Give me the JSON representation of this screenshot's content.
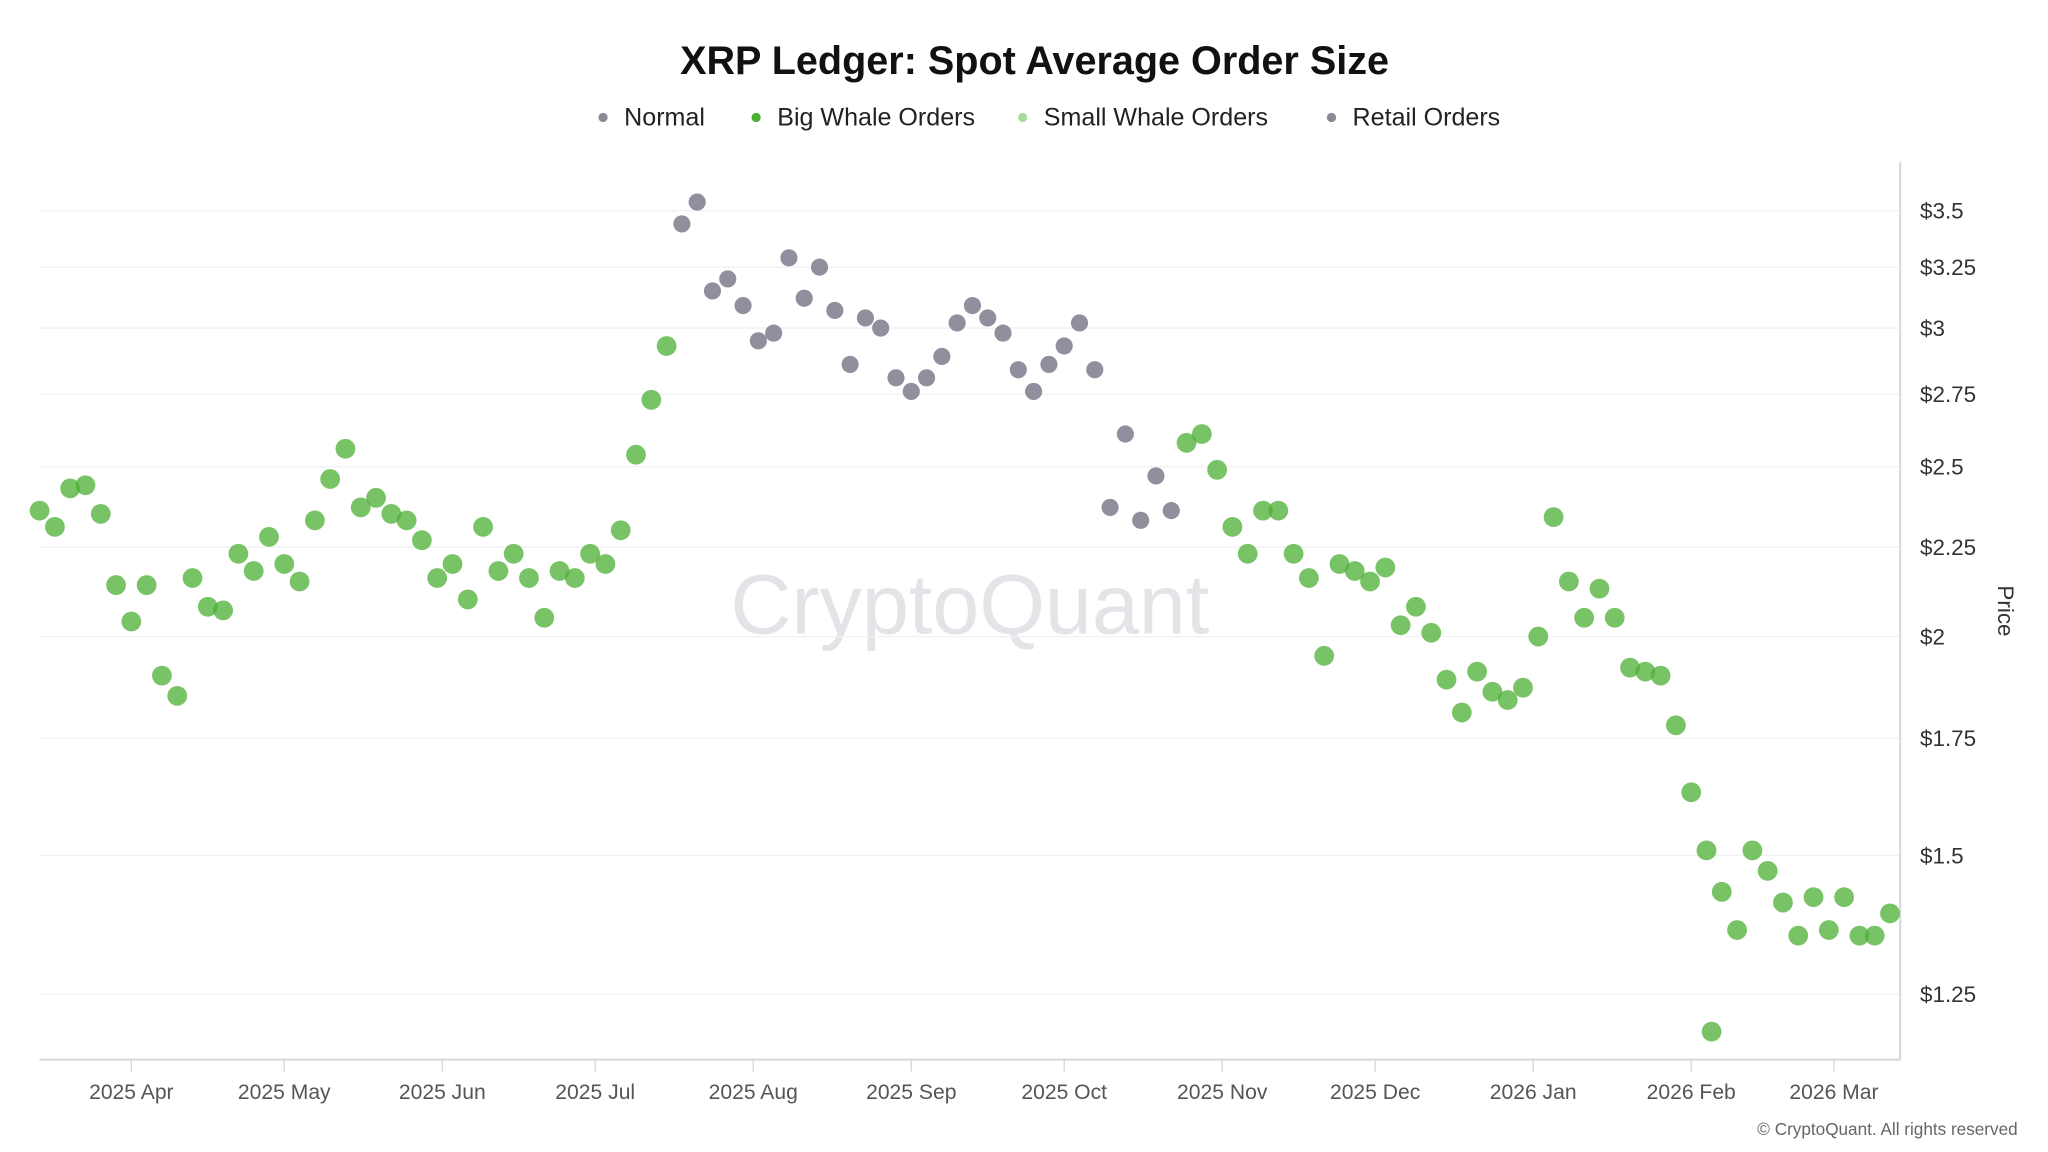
{
  "chart_data": {
    "type": "scatter",
    "title": "XRP Ledger: Spot Average Order Size",
    "ylabel": "Price",
    "xlabel": "",
    "y_scale": "log",
    "ylim": [
      1.147,
      3.73
    ],
    "xlim": [
      "2025-03-14",
      "2026-03-14"
    ],
    "grid": "horizontal",
    "legend_position": "top-center",
    "y_axis_side": "right",
    "legend": [
      {
        "key": "normal",
        "label": "Normal",
        "color": "#8b8898"
      },
      {
        "key": "big",
        "label": "Big Whale Orders",
        "color": "#4caf34"
      },
      {
        "key": "small",
        "label": "Small Whale Orders",
        "color": "#a8dc98"
      },
      {
        "key": "retail",
        "label": "Retail Orders",
        "color": "#8b8898"
      }
    ],
    "y_ticks": [
      {
        "value": 3.5,
        "label": "$3.5"
      },
      {
        "value": 3.25,
        "label": "$3.25"
      },
      {
        "value": 3.0,
        "label": "$3"
      },
      {
        "value": 2.75,
        "label": "$2.75"
      },
      {
        "value": 2.5,
        "label": "$2.5"
      },
      {
        "value": 2.25,
        "label": "$2.25"
      },
      {
        "value": 2.0,
        "label": "$2"
      },
      {
        "value": 1.75,
        "label": "$1.75"
      },
      {
        "value": 1.5,
        "label": "$1.5"
      },
      {
        "value": 1.25,
        "label": "$1.25"
      }
    ],
    "x_ticks": [
      {
        "date": "2025-04-01",
        "label": "2025 Apr"
      },
      {
        "date": "2025-05-01",
        "label": "2025 May"
      },
      {
        "date": "2025-06-01",
        "label": "2025 Jun"
      },
      {
        "date": "2025-07-01",
        "label": "2025 Jul"
      },
      {
        "date": "2025-08-01",
        "label": "2025 Aug"
      },
      {
        "date": "2025-09-01",
        "label": "2025 Sep"
      },
      {
        "date": "2025-10-01",
        "label": "2025 Oct"
      },
      {
        "date": "2025-11-01",
        "label": "2025 Nov"
      },
      {
        "date": "2025-12-01",
        "label": "2025 Dec"
      },
      {
        "date": "2026-01-01",
        "label": "2026 Jan"
      },
      {
        "date": "2026-02-01",
        "label": "2026 Feb"
      },
      {
        "date": "2026-03-01",
        "label": "2026 Mar"
      }
    ],
    "points": [
      [
        "2025-03-14",
        2.36,
        "big"
      ],
      [
        "2025-03-17",
        2.31,
        "big"
      ],
      [
        "2025-03-20",
        2.43,
        "big"
      ],
      [
        "2025-03-23",
        2.44,
        "big"
      ],
      [
        "2025-03-26",
        2.35,
        "big"
      ],
      [
        "2025-03-29",
        2.14,
        "big"
      ],
      [
        "2025-04-01",
        2.04,
        "big"
      ],
      [
        "2025-04-04",
        2.14,
        "big"
      ],
      [
        "2025-04-07",
        1.9,
        "big"
      ],
      [
        "2025-04-10",
        1.85,
        "big"
      ],
      [
        "2025-04-13",
        2.16,
        "big"
      ],
      [
        "2025-04-16",
        2.08,
        "big"
      ],
      [
        "2025-04-19",
        2.07,
        "big"
      ],
      [
        "2025-04-22",
        2.23,
        "big"
      ],
      [
        "2025-04-25",
        2.18,
        "big"
      ],
      [
        "2025-04-28",
        2.28,
        "big"
      ],
      [
        "2025-05-01",
        2.2,
        "big"
      ],
      [
        "2025-05-04",
        2.15,
        "big"
      ],
      [
        "2025-05-07",
        2.33,
        "big"
      ],
      [
        "2025-05-10",
        2.46,
        "big"
      ],
      [
        "2025-05-13",
        2.56,
        "big"
      ],
      [
        "2025-05-16",
        2.37,
        "big"
      ],
      [
        "2025-05-19",
        2.4,
        "big"
      ],
      [
        "2025-05-22",
        2.35,
        "big"
      ],
      [
        "2025-05-25",
        2.33,
        "big"
      ],
      [
        "2025-05-28",
        2.27,
        "big"
      ],
      [
        "2025-05-31",
        2.16,
        "big"
      ],
      [
        "2025-06-03",
        2.2,
        "big"
      ],
      [
        "2025-06-06",
        2.1,
        "big"
      ],
      [
        "2025-06-09",
        2.31,
        "big"
      ],
      [
        "2025-06-12",
        2.18,
        "big"
      ],
      [
        "2025-06-15",
        2.23,
        "big"
      ],
      [
        "2025-06-18",
        2.16,
        "big"
      ],
      [
        "2025-06-21",
        2.05,
        "big"
      ],
      [
        "2025-06-24",
        2.18,
        "big"
      ],
      [
        "2025-06-27",
        2.16,
        "big"
      ],
      [
        "2025-06-30",
        2.23,
        "big"
      ],
      [
        "2025-07-03",
        2.2,
        "big"
      ],
      [
        "2025-07-06",
        2.3,
        "big"
      ],
      [
        "2025-07-09",
        2.54,
        "big"
      ],
      [
        "2025-07-12",
        2.73,
        "big"
      ],
      [
        "2025-07-15",
        2.93,
        "big"
      ],
      [
        "2025-07-18",
        3.44,
        "normal"
      ],
      [
        "2025-07-21",
        3.54,
        "normal"
      ],
      [
        "2025-07-24",
        3.15,
        "normal"
      ],
      [
        "2025-07-27",
        3.2,
        "normal"
      ],
      [
        "2025-07-30",
        3.09,
        "normal"
      ],
      [
        "2025-08-02",
        2.95,
        "normal"
      ],
      [
        "2025-08-05",
        2.98,
        "normal"
      ],
      [
        "2025-08-08",
        3.29,
        "normal"
      ],
      [
        "2025-08-11",
        3.12,
        "normal"
      ],
      [
        "2025-08-14",
        3.25,
        "normal"
      ],
      [
        "2025-08-17",
        3.07,
        "normal"
      ],
      [
        "2025-08-20",
        2.86,
        "normal"
      ],
      [
        "2025-08-23",
        3.04,
        "normal"
      ],
      [
        "2025-08-26",
        3.0,
        "normal"
      ],
      [
        "2025-08-29",
        2.81,
        "normal"
      ],
      [
        "2025-09-01",
        2.76,
        "normal"
      ],
      [
        "2025-09-04",
        2.81,
        "normal"
      ],
      [
        "2025-09-07",
        2.89,
        "normal"
      ],
      [
        "2025-09-10",
        3.02,
        "normal"
      ],
      [
        "2025-09-13",
        3.09,
        "normal"
      ],
      [
        "2025-09-16",
        3.04,
        "normal"
      ],
      [
        "2025-09-19",
        2.98,
        "normal"
      ],
      [
        "2025-09-22",
        2.84,
        "normal"
      ],
      [
        "2025-09-25",
        2.76,
        "normal"
      ],
      [
        "2025-09-28",
        2.86,
        "normal"
      ],
      [
        "2025-10-01",
        2.93,
        "normal"
      ],
      [
        "2025-10-04",
        3.02,
        "normal"
      ],
      [
        "2025-10-07",
        2.84,
        "normal"
      ],
      [
        "2025-10-10",
        2.37,
        "normal"
      ],
      [
        "2025-10-13",
        2.61,
        "normal"
      ],
      [
        "2025-10-16",
        2.33,
        "normal"
      ],
      [
        "2025-10-19",
        2.47,
        "normal"
      ],
      [
        "2025-10-22",
        2.36,
        "normal"
      ],
      [
        "2025-10-25",
        2.58,
        "big"
      ],
      [
        "2025-10-28",
        2.61,
        "big"
      ],
      [
        "2025-10-31",
        2.49,
        "big"
      ],
      [
        "2025-11-03",
        2.31,
        "big"
      ],
      [
        "2025-11-06",
        2.23,
        "big"
      ],
      [
        "2025-11-09",
        2.36,
        "big"
      ],
      [
        "2025-11-12",
        2.36,
        "big"
      ],
      [
        "2025-11-15",
        2.23,
        "big"
      ],
      [
        "2025-11-18",
        2.16,
        "big"
      ],
      [
        "2025-11-21",
        1.95,
        "big"
      ],
      [
        "2025-11-24",
        2.2,
        "big"
      ],
      [
        "2025-11-27",
        2.18,
        "big"
      ],
      [
        "2025-11-30",
        2.15,
        "big"
      ],
      [
        "2025-12-03",
        2.19,
        "big"
      ],
      [
        "2025-12-06",
        2.03,
        "big"
      ],
      [
        "2025-12-09",
        2.08,
        "big"
      ],
      [
        "2025-12-12",
        2.01,
        "big"
      ],
      [
        "2025-12-15",
        1.89,
        "big"
      ],
      [
        "2025-12-18",
        1.81,
        "big"
      ],
      [
        "2025-12-21",
        1.91,
        "big"
      ],
      [
        "2025-12-24",
        1.86,
        "big"
      ],
      [
        "2025-12-27",
        1.84,
        "big"
      ],
      [
        "2025-12-30",
        1.87,
        "big"
      ],
      [
        "2026-01-02",
        2.0,
        "big"
      ],
      [
        "2026-01-05",
        2.34,
        "big"
      ],
      [
        "2026-01-08",
        2.15,
        "big"
      ],
      [
        "2026-01-11",
        2.05,
        "big"
      ],
      [
        "2026-01-14",
        2.13,
        "big"
      ],
      [
        "2026-01-17",
        2.05,
        "big"
      ],
      [
        "2026-01-20",
        1.92,
        "big"
      ],
      [
        "2026-01-23",
        1.91,
        "big"
      ],
      [
        "2026-01-26",
        1.9,
        "big"
      ],
      [
        "2026-01-29",
        1.78,
        "big"
      ],
      [
        "2026-02-01",
        1.63,
        "big"
      ],
      [
        "2026-02-04",
        1.51,
        "big"
      ],
      [
        "2026-02-05",
        1.19,
        "big"
      ],
      [
        "2026-02-07",
        1.43,
        "big"
      ],
      [
        "2026-02-10",
        1.36,
        "big"
      ],
      [
        "2026-02-13",
        1.51,
        "big"
      ],
      [
        "2026-02-16",
        1.47,
        "big"
      ],
      [
        "2026-02-19",
        1.41,
        "big"
      ],
      [
        "2026-02-22",
        1.35,
        "big"
      ],
      [
        "2026-02-25",
        1.42,
        "big"
      ],
      [
        "2026-02-28",
        1.36,
        "big"
      ],
      [
        "2026-03-03",
        1.42,
        "big"
      ],
      [
        "2026-03-06",
        1.35,
        "big"
      ],
      [
        "2026-03-09",
        1.35,
        "big"
      ],
      [
        "2026-03-12",
        1.39,
        "big"
      ]
    ]
  },
  "watermark": "CryptoQuant",
  "footer": "© CryptoQuant. All rights reserved"
}
